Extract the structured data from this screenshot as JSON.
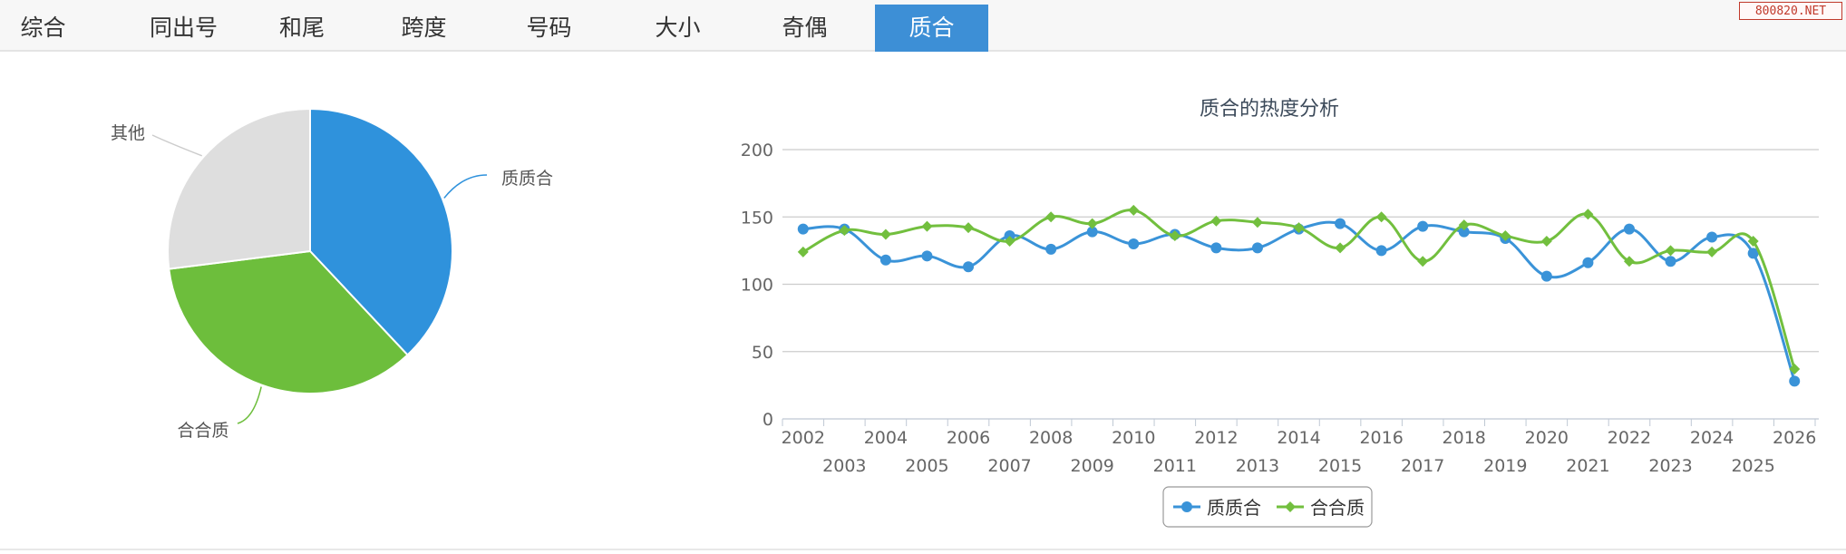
{
  "tabs": [
    {
      "label": "综合",
      "active": false
    },
    {
      "label": "同出号",
      "active": false
    },
    {
      "label": "和尾",
      "active": false
    },
    {
      "label": "跨度",
      "active": false
    },
    {
      "label": "号码",
      "active": false
    },
    {
      "label": "大小",
      "active": false
    },
    {
      "label": "奇偶",
      "active": false
    },
    {
      "label": "质合",
      "active": true
    }
  ],
  "watermark": "800820.NET",
  "colors": {
    "blue": "#3a93d8",
    "green": "#72bf3e",
    "gray": "#dcdcdc",
    "tab_active": "#3d8fd6"
  },
  "chart_data": [
    {
      "type": "pie",
      "slices": [
        {
          "label": "质质合",
          "value": 38,
          "color": "#2f92dc"
        },
        {
          "label": "合合质",
          "value": 35,
          "color": "#6dbe3c"
        },
        {
          "label": "其他",
          "value": 27,
          "color": "#dedede"
        }
      ]
    },
    {
      "type": "line",
      "title": "质合的热度分析",
      "x": [
        "2002",
        "2003",
        "2004",
        "2005",
        "2006",
        "2007",
        "2008",
        "2009",
        "2010",
        "2011",
        "2012",
        "2013",
        "2014",
        "2015",
        "2016",
        "2017",
        "2018",
        "2019",
        "2020",
        "2021",
        "2022",
        "2023",
        "2024",
        "2025",
        "2026"
      ],
      "ylim": [
        0,
        200
      ],
      "yticks": [
        0,
        50,
        100,
        150,
        200
      ],
      "grid": true,
      "legend": "bottom-center",
      "series": [
        {
          "name": "质质合",
          "color": "#3a93d8",
          "marker": "circle",
          "values": [
            141,
            141,
            118,
            121,
            113,
            136,
            126,
            139,
            130,
            137,
            127,
            127,
            141,
            145,
            125,
            143,
            139,
            134,
            106,
            116,
            141,
            117,
            135,
            123,
            28
          ]
        },
        {
          "name": "合合质",
          "color": "#72bf3e",
          "marker": "diamond",
          "values": [
            124,
            140,
            137,
            143,
            142,
            132,
            150,
            145,
            155,
            136,
            147,
            146,
            142,
            127,
            150,
            117,
            144,
            136,
            132,
            152,
            117,
            125,
            124,
            132,
            37
          ]
        }
      ]
    }
  ]
}
